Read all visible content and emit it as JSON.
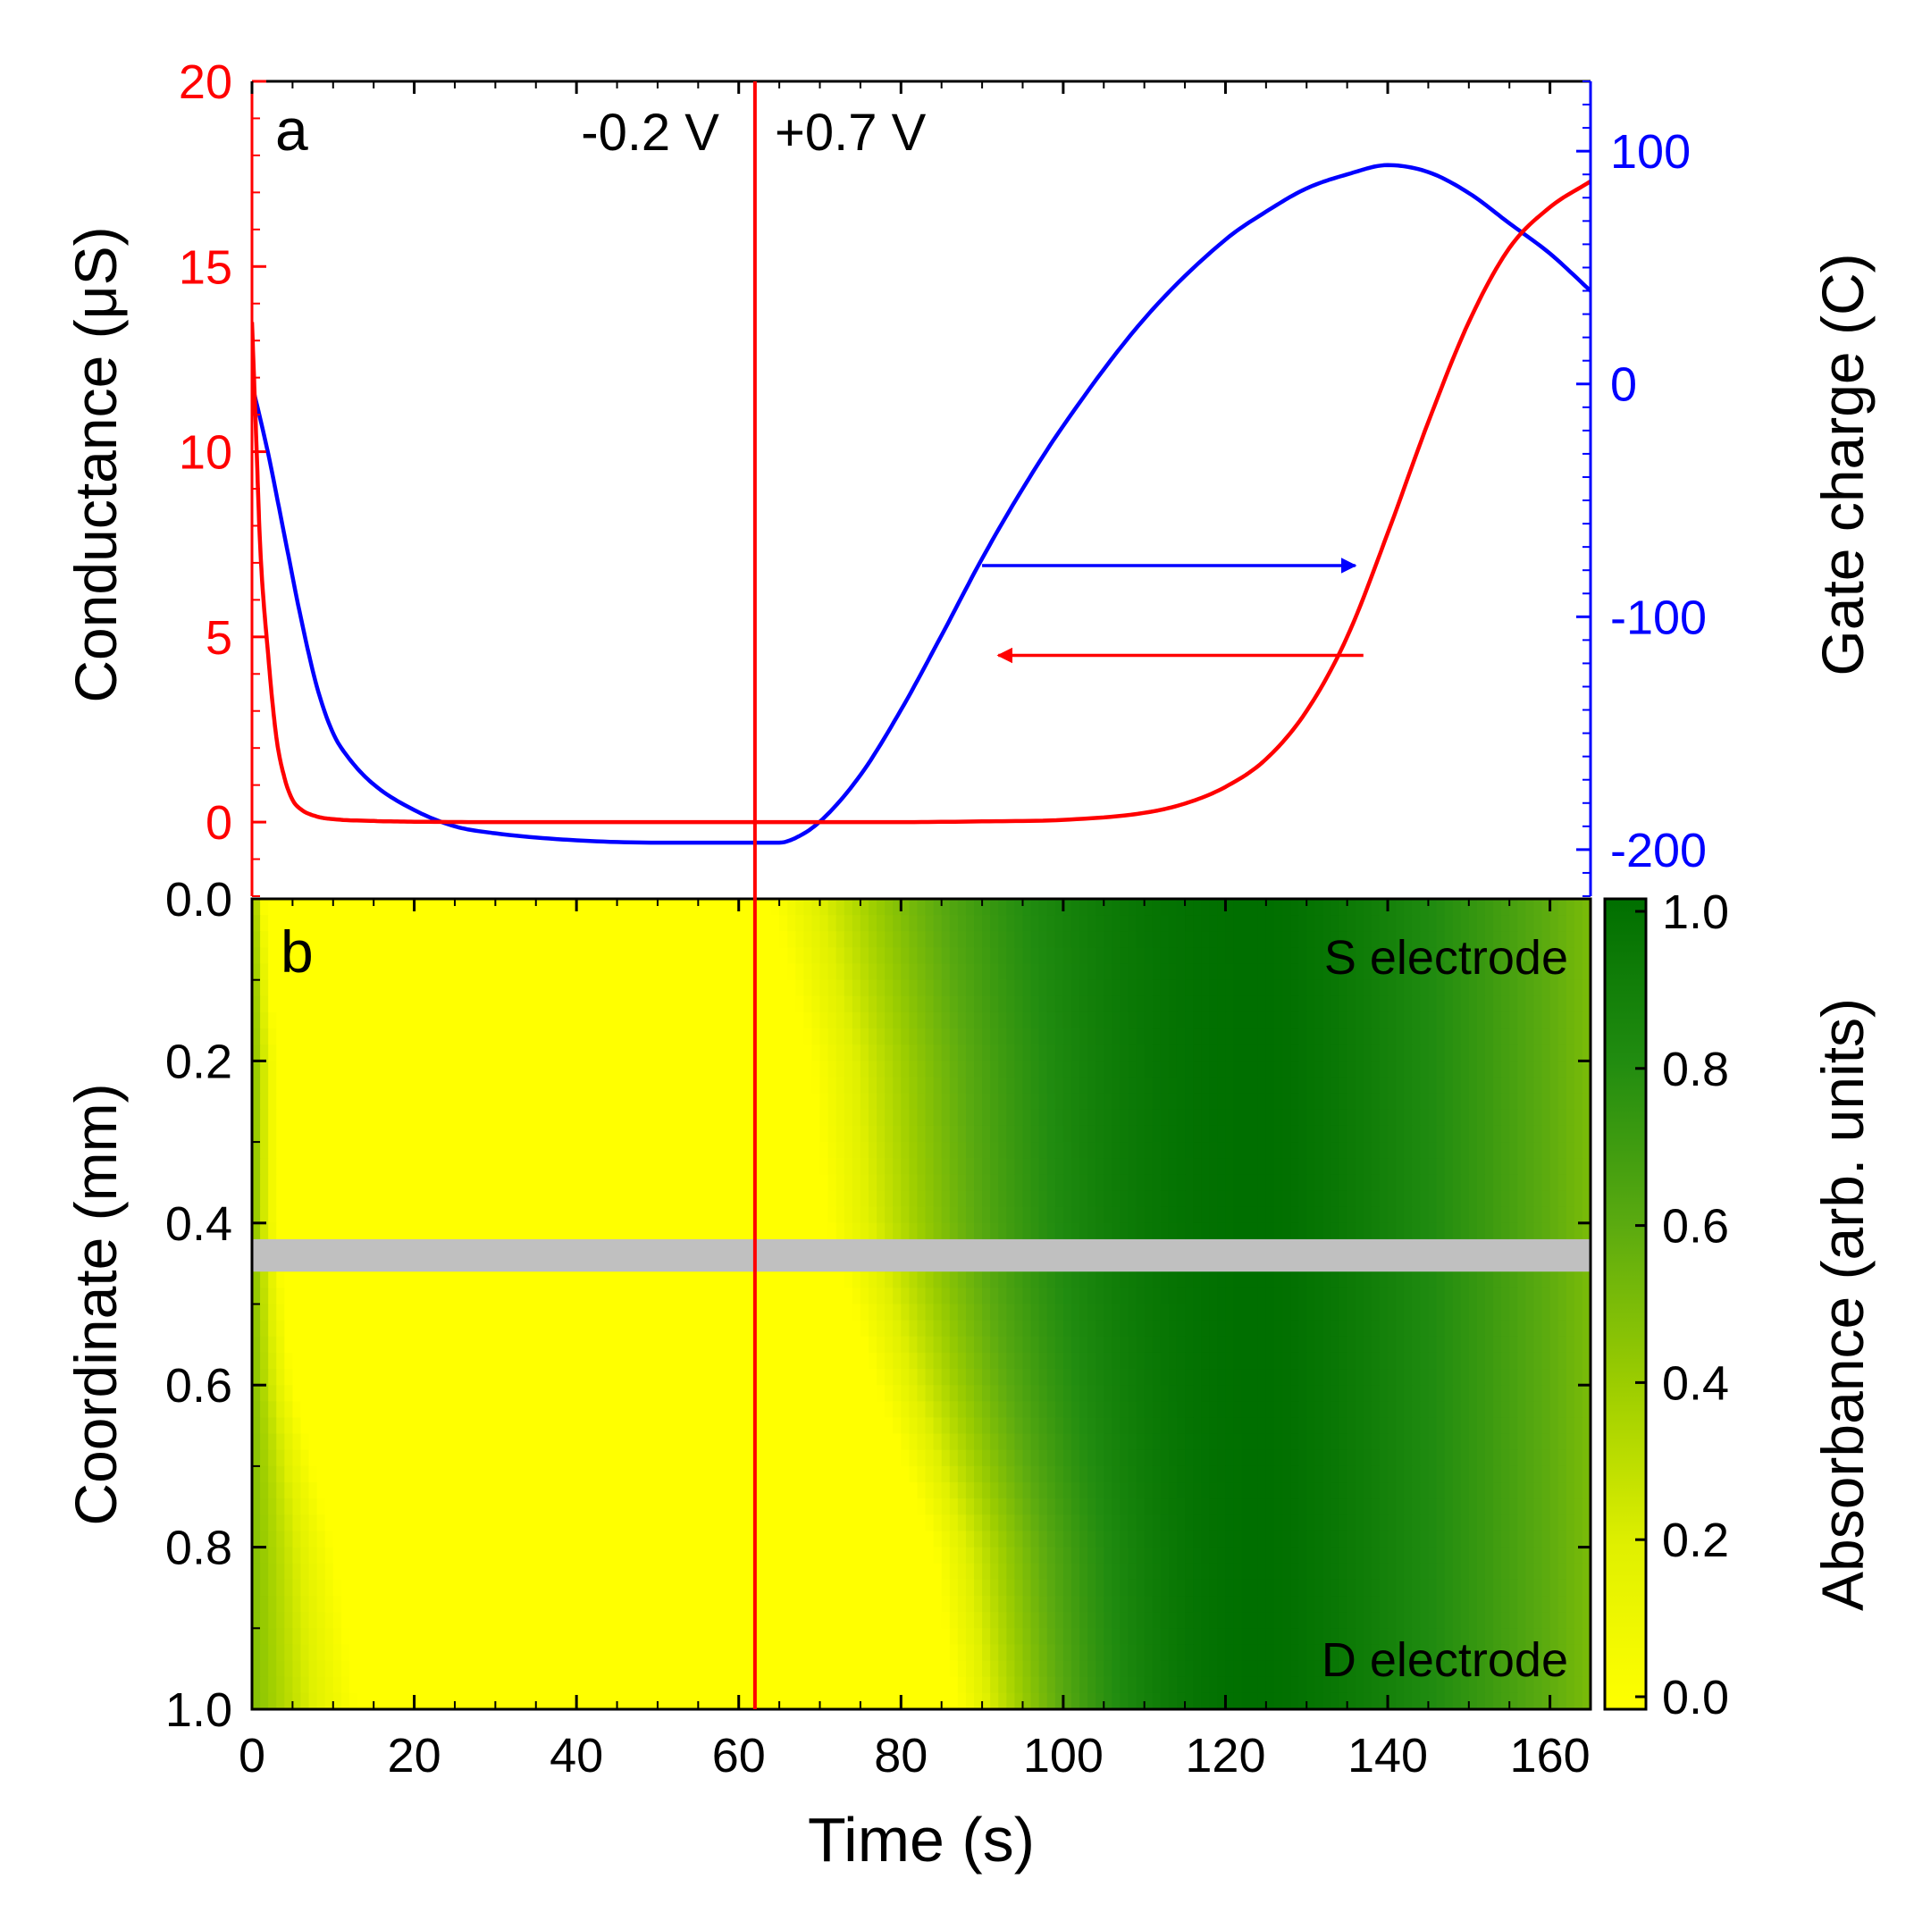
{
  "chart_data": [
    {
      "panel": "a",
      "type": "line",
      "panel_label": "a",
      "xlabel": "Time (s)",
      "xlim": [
        0,
        165
      ],
      "xticks": [
        0,
        20,
        40,
        60,
        80,
        100,
        120,
        140,
        160
      ],
      "ylabel_left": "Conductance (μS)",
      "ylim_left": [
        -2,
        20
      ],
      "yticks_left": [
        0,
        5,
        10,
        15,
        20
      ],
      "ylabel_right": "Gate charge (C)",
      "ylim_right": [
        -220,
        130
      ],
      "yticks_right": [
        -200,
        -100,
        0,
        100
      ],
      "annotations": {
        "voltage_before": "-0.2 V",
        "voltage_after": "+0.7 V",
        "switch_time": 62
      },
      "colors": {
        "conductance": "#ff0000",
        "gate_charge": "#0000ff",
        "axis": "#000000"
      },
      "series": [
        {
          "name": "Conductance",
          "axis": "left",
          "x": [
            0,
            0.5,
            1,
            2,
            3,
            4,
            5,
            6,
            8,
            10,
            15,
            20,
            30,
            40,
            50,
            62,
            70,
            80,
            90,
            100,
            110,
            115,
            120,
            125,
            130,
            135,
            140,
            145,
            150,
            155,
            160,
            165
          ],
          "y": [
            13.5,
            10.5,
            7.5,
            4.5,
            2.3,
            1.2,
            0.6,
            0.35,
            0.15,
            0.08,
            0.03,
            0.01,
            0.0,
            0.0,
            0.0,
            0.0,
            0.0,
            0.0,
            0.02,
            0.06,
            0.25,
            0.5,
            0.95,
            1.7,
            3.0,
            5.0,
            7.8,
            10.8,
            13.5,
            15.5,
            16.6,
            17.3
          ]
        },
        {
          "name": "Gate charge",
          "axis": "right",
          "x": [
            0,
            2,
            4,
            6,
            8,
            10,
            12,
            15,
            20,
            25,
            30,
            40,
            50,
            62,
            64,
            65,
            67,
            70,
            75,
            80,
            85,
            90,
            95,
            100,
            110,
            120,
            125,
            130,
            135,
            140,
            145,
            150,
            155,
            160,
            165
          ],
          "y": [
            0,
            -30,
            -65,
            -100,
            -130,
            -150,
            -161,
            -172,
            -183,
            -190,
            -193,
            -196,
            -197,
            -197,
            -197,
            -197,
            -195,
            -188,
            -168,
            -140,
            -108,
            -75,
            -45,
            -18,
            28,
            62,
            74,
            84,
            90,
            94,
            91,
            82,
            69,
            56,
            40
          ]
        }
      ],
      "arrows": [
        {
          "series": "Gate charge",
          "axis": "right",
          "from_x": 90,
          "to_x": 136,
          "y": -78
        },
        {
          "series": "Conductance",
          "axis": "left",
          "from_x": 137,
          "to_x": 92,
          "y": 4.5
        }
      ]
    },
    {
      "panel": "b",
      "type": "heatmap",
      "panel_label": "b",
      "xlabel": "Time (s)",
      "xlim": [
        0,
        165
      ],
      "xticks": [
        0,
        20,
        40,
        60,
        80,
        100,
        120,
        140,
        160
      ],
      "ylabel": "Coordinate (mm)",
      "ylim": [
        1.0,
        0.0
      ],
      "yticks": [
        0.0,
        0.2,
        0.4,
        0.6,
        0.8,
        1.0
      ],
      "colorbar": {
        "label": "Absorbance (arb. units)",
        "range": [
          0.0,
          1.0
        ],
        "ticks": [
          0.0,
          0.2,
          0.4,
          0.6,
          0.8,
          1.0
        ],
        "colors": [
          "#ffff00",
          "#e0f000",
          "#9ccd00",
          "#5aaa10",
          "#218c10",
          "#006f00"
        ]
      },
      "annotations": {
        "top": "S electrode",
        "bottom": "D electrode",
        "switch_time": 62
      },
      "masked_band": {
        "y_from": 0.42,
        "y_to": 0.46,
        "color": "#c0c0c0"
      },
      "model": {
        "coordinates": [
          0.0,
          0.2,
          0.4,
          0.6,
          0.8,
          1.0
        ],
        "recolor_start_time": [
          64,
          69,
          71,
          77,
          84,
          87
        ],
        "initial_fade_time": [
          1.5,
          3,
          3,
          5,
          10,
          13
        ],
        "peak_time": 125,
        "late_absorbance_at_165": 0.5
      }
    }
  ]
}
